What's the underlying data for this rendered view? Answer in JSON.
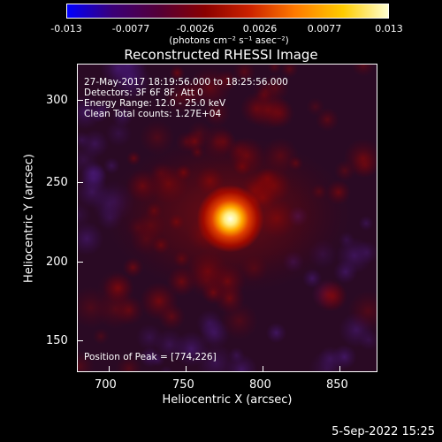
{
  "colorbar": {
    "tick_labels": [
      "-0.013",
      "-0.0077",
      "-0.0026",
      "0.0026",
      "0.0077",
      "0.013"
    ],
    "unit_text": "(photons cm⁻² s⁻¹ asec⁻²)",
    "colors": [
      "#0000ff",
      "#3a0078",
      "#550035",
      "#8a0000",
      "#cc2200",
      "#ff7a00",
      "#ffcc00",
      "#ffffd0"
    ]
  },
  "plot": {
    "title": "Reconstructed RHESSI Image",
    "info_lines": [
      "27-May-2017 18:19:56.000 to 18:25:56.000",
      "Detectors: 3F 6F 8F, Att 0",
      "Energy Range: 12.0 - 25.0 keV",
      "Clean    Total counts: 1.27E+04"
    ],
    "peak_text": "Position of Peak = [774,226]",
    "xlabel": "Heliocentric X (arcsec)",
    "ylabel": "Heliocentric Y (arcsec)",
    "x_ticks": [
      "700",
      "750",
      "800",
      "850"
    ],
    "y_ticks": [
      "150",
      "200",
      "250",
      "300"
    ],
    "xlim": [
      675,
      870
    ],
    "ylim": [
      130,
      322
    ],
    "peak": [
      774,
      226
    ]
  },
  "timestamp": "5-Sep-2022 15:25"
}
